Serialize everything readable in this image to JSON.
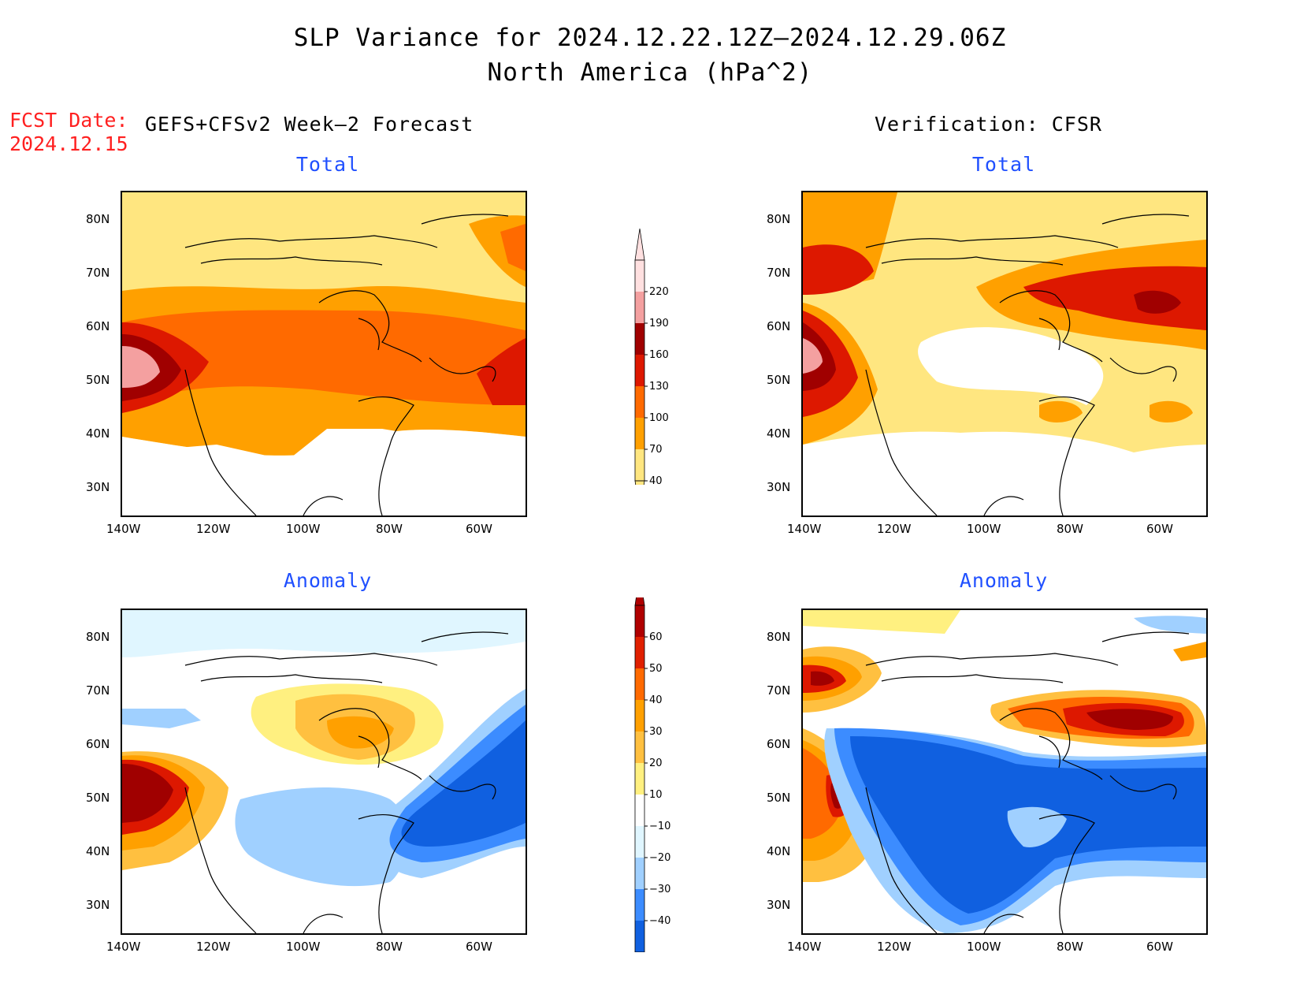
{
  "title": {
    "line1": "SLP Variance for 2024.12.22.12Z–2024.12.29.06Z",
    "line2": "North America (hPa^2)"
  },
  "fcst": {
    "label": "FCST Date:",
    "date": "2024.12.15"
  },
  "headers": {
    "forecast": "GEFS+CFSv2 Week–2 Forecast",
    "verification": "Verification: CFSR"
  },
  "panels": {
    "fc_total": "Total",
    "ver_total": "Total",
    "fc_anom": "Anomaly",
    "ver_anom": "Anomaly"
  },
  "axes": {
    "lon_labels": [
      "140W",
      "120W",
      "100W",
      "80W",
      "60W"
    ],
    "lat_labels": [
      "80N",
      "70N",
      "60N",
      "50N",
      "40N",
      "30N"
    ]
  },
  "colorbars": {
    "total": {
      "levels": [
        "220",
        "190",
        "160",
        "130",
        "100",
        "70",
        "40"
      ],
      "colors": [
        "#ffe0e0",
        "#f4a0a0",
        "#a00000",
        "#dd1800",
        "#ff6a00",
        "#ffa000",
        "#ffe680"
      ]
    },
    "anomaly": {
      "levels": [
        "60",
        "50",
        "40",
        "30",
        "20",
        "10",
        "−10",
        "−20",
        "−30",
        "−40"
      ],
      "colors": [
        "#b00000",
        "#e02000",
        "#ff6a00",
        "#ffa000",
        "#ffc040",
        "#fff080",
        "#ffffff",
        "#e0f6ff",
        "#a0d0ff",
        "#3c8cff",
        "#1060e0"
      ]
    }
  }
}
